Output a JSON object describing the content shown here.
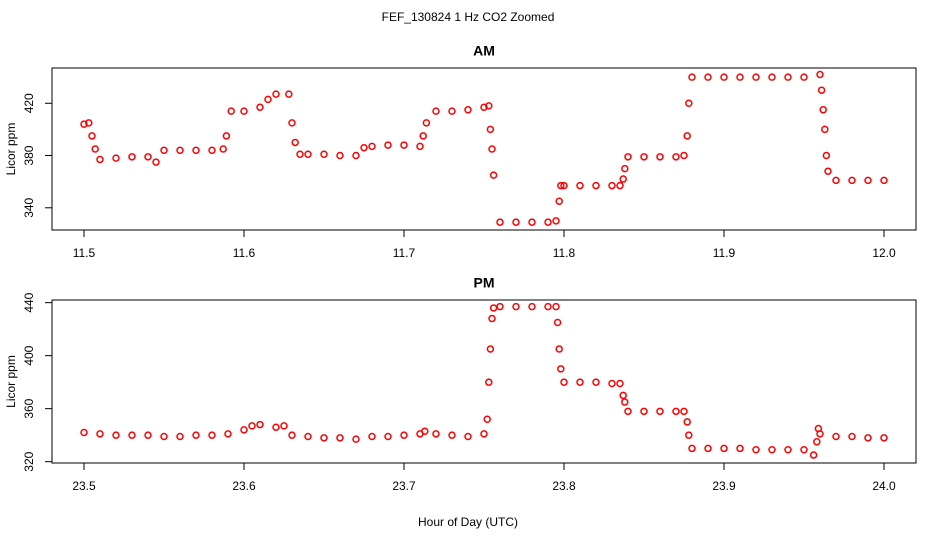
{
  "title": "FEF_130824  1 Hz CO2 Zoomed",
  "xlabel": "Hour of Day (UTC)",
  "chart_data": [
    {
      "type": "scatter",
      "title": "AM",
      "ylabel": "Licor ppm",
      "color": "#ff0000",
      "x": [
        11.5,
        11.503,
        11.505,
        11.507,
        11.51,
        11.52,
        11.53,
        11.54,
        11.545,
        11.55,
        11.56,
        11.57,
        11.58,
        11.587,
        11.589,
        11.592,
        11.6,
        11.61,
        11.615,
        11.62,
        11.628,
        11.63,
        11.632,
        11.635,
        11.64,
        11.65,
        11.66,
        11.67,
        11.675,
        11.68,
        11.69,
        11.7,
        11.71,
        11.712,
        11.714,
        11.72,
        11.73,
        11.74,
        11.75,
        11.753,
        11.754,
        11.755,
        11.756,
        11.76,
        11.77,
        11.78,
        11.79,
        11.795,
        11.797,
        11.798,
        11.8,
        11.81,
        11.82,
        11.83,
        11.835,
        11.837,
        11.838,
        11.84,
        11.85,
        11.86,
        11.87,
        11.875,
        11.877,
        11.878,
        11.88,
        11.89,
        11.9,
        11.91,
        11.92,
        11.93,
        11.94,
        11.95,
        11.96,
        11.961,
        11.962,
        11.963,
        11.964,
        11.965,
        11.97,
        11.98,
        11.99,
        12.0
      ],
      "values": [
        404,
        405,
        395,
        385,
        377,
        378,
        379,
        379,
        375,
        384,
        384,
        384,
        384,
        385,
        395,
        414,
        414,
        417,
        423,
        427,
        427,
        405,
        390,
        381,
        381,
        381,
        380,
        380,
        386,
        387,
        388,
        388,
        387,
        395,
        405,
        414,
        414,
        415,
        417,
        418,
        400,
        385,
        365,
        329,
        329,
        329,
        329,
        330,
        345,
        357,
        357,
        357,
        357,
        357,
        357,
        362,
        370,
        379,
        379,
        379,
        379,
        380,
        395,
        420,
        440,
        440,
        440,
        440,
        440,
        440,
        440,
        440,
        442,
        430,
        415,
        400,
        380,
        368,
        361,
        361,
        361,
        361
      ],
      "xlim": [
        11.48,
        12.02
      ],
      "xticks": [
        11.5,
        11.6,
        11.7,
        11.8,
        11.9,
        {
          "value": 12,
          "label": "12.0"
        }
      ],
      "ylim": [
        323,
        447
      ],
      "yticks": [
        340,
        380,
        420
      ]
    },
    {
      "type": "scatter",
      "title": "PM",
      "ylabel": "Licor ppm",
      "color": "#ff0000",
      "x": [
        23.5,
        23.51,
        23.52,
        23.53,
        23.54,
        23.55,
        23.56,
        23.57,
        23.58,
        23.59,
        23.6,
        23.605,
        23.61,
        23.62,
        23.625,
        23.63,
        23.64,
        23.65,
        23.66,
        23.67,
        23.68,
        23.69,
        23.7,
        23.71,
        23.713,
        23.72,
        23.73,
        23.74,
        23.75,
        23.752,
        23.753,
        23.754,
        23.755,
        23.756,
        23.76,
        23.77,
        23.78,
        23.79,
        23.795,
        23.796,
        23.797,
        23.798,
        23.8,
        23.81,
        23.82,
        23.83,
        23.835,
        23.837,
        23.838,
        23.84,
        23.85,
        23.86,
        23.87,
        23.875,
        23.877,
        23.878,
        23.88,
        23.89,
        23.9,
        23.91,
        23.92,
        23.93,
        23.94,
        23.95,
        23.956,
        23.958,
        23.959,
        23.96,
        23.97,
        23.98,
        23.99,
        24.0
      ],
      "values": [
        342,
        341,
        340,
        340,
        340,
        339,
        339,
        340,
        340,
        341,
        344,
        347,
        348,
        346,
        347,
        340,
        339,
        338,
        338,
        337,
        339,
        339,
        340,
        341,
        343,
        341,
        340,
        339,
        341,
        352,
        380,
        405,
        428,
        436,
        437,
        437,
        437,
        437,
        437,
        425,
        405,
        390,
        380,
        380,
        380,
        379,
        379,
        370,
        365,
        358,
        358,
        358,
        358,
        358,
        350,
        340,
        330,
        330,
        330,
        330,
        329,
        329,
        329,
        329,
        325,
        335,
        345,
        341,
        339,
        339,
        338,
        338
      ],
      "xlim": [
        23.48,
        24.02
      ],
      "xticks": [
        23.5,
        23.6,
        23.7,
        23.8,
        23.9,
        {
          "value": 24,
          "label": "24.0"
        }
      ],
      "ylim": [
        319,
        442
      ],
      "yticks": [
        320,
        360,
        400,
        440
      ]
    }
  ]
}
